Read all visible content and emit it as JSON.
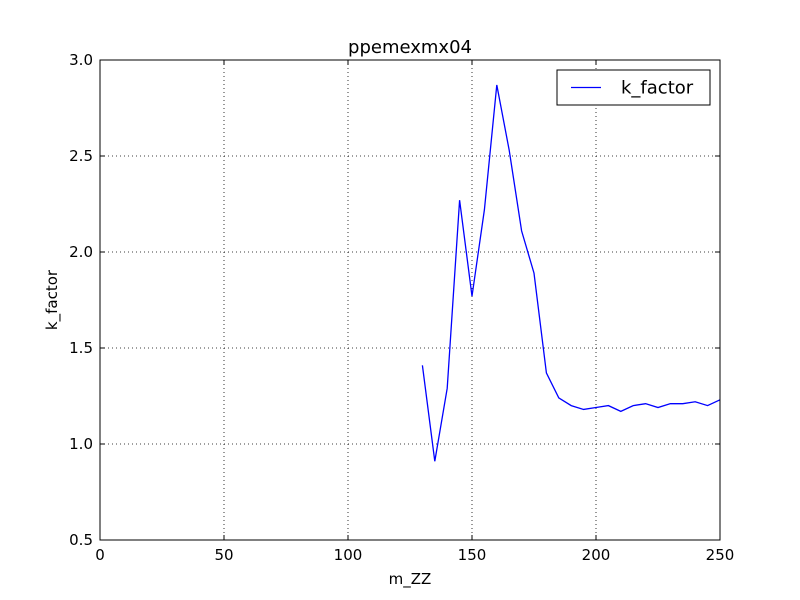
{
  "chart_data": {
    "type": "line",
    "title": "ppemexmx04",
    "xlabel": "m_ZZ",
    "ylabel": "k_factor",
    "xlim": [
      0,
      250
    ],
    "ylim": [
      0.5,
      3.0
    ],
    "x_ticks": [
      0,
      50,
      100,
      150,
      200,
      250
    ],
    "y_ticks": [
      0.5,
      1.0,
      1.5,
      2.0,
      2.5,
      3.0
    ],
    "x_tick_labels": [
      "0",
      "50",
      "100",
      "150",
      "200",
      "250"
    ],
    "y_tick_labels": [
      "0.5",
      "1.0",
      "1.5",
      "2.0",
      "2.5",
      "3.0"
    ],
    "grid": true,
    "legend": "top-right",
    "series": [
      {
        "name": "k_factor",
        "color": "#0000ff",
        "x": [
          130,
          135,
          140,
          145,
          150,
          155,
          160,
          165,
          170,
          175,
          180,
          185,
          190,
          195,
          200,
          205,
          210,
          215,
          220,
          225,
          230,
          235,
          240,
          245,
          250
        ],
        "y": [
          1.41,
          0.91,
          1.29,
          2.27,
          1.77,
          2.22,
          2.87,
          2.53,
          2.11,
          1.89,
          1.37,
          1.24,
          1.2,
          1.18,
          1.19,
          1.2,
          1.17,
          1.2,
          1.21,
          1.19,
          1.21,
          1.21,
          1.22,
          1.2,
          1.23
        ]
      }
    ]
  }
}
